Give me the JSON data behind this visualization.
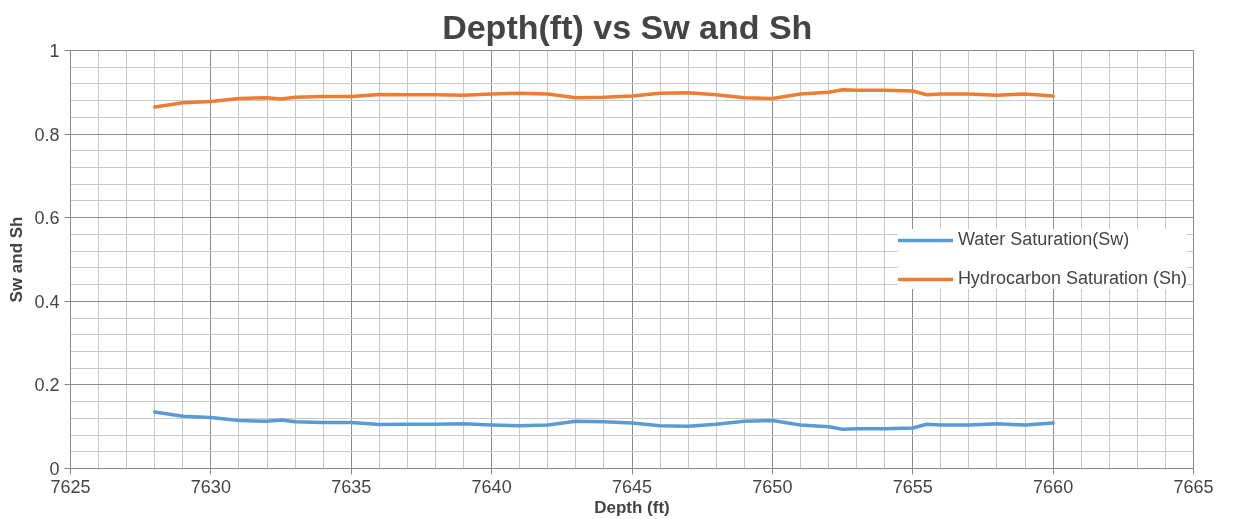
{
  "chart_data": {
    "type": "line",
    "title": "Depth(ft)  vs Sw and Sh",
    "xlabel": "Depth (ft)",
    "ylabel": "Sw and Sh",
    "x": [
      7628,
      7629,
      7630,
      7631,
      7632,
      7632.5,
      7633,
      7634,
      7635,
      7636,
      7637,
      7638,
      7639,
      7640,
      7641,
      7642,
      7643,
      7644,
      7645,
      7646,
      7647,
      7648,
      7649,
      7650,
      7651,
      7652,
      7652.5,
      7653,
      7654,
      7655,
      7655.5,
      7656,
      7657,
      7658,
      7659,
      7660
    ],
    "series": [
      {
        "name": "Water Saturation(Sw)",
        "color": "#5b9bd5",
        "values": [
          0.135,
          0.125,
          0.122,
          0.115,
          0.113,
          0.116,
          0.112,
          0.11,
          0.11,
          0.105,
          0.106,
          0.106,
          0.107,
          0.104,
          0.102,
          0.104,
          0.113,
          0.112,
          0.109,
          0.102,
          0.101,
          0.106,
          0.113,
          0.115,
          0.104,
          0.1,
          0.094,
          0.095,
          0.095,
          0.097,
          0.106,
          0.104,
          0.104,
          0.107,
          0.104,
          0.109
        ]
      },
      {
        "name": "Hydrocarbon Saturation (Sh)",
        "color": "#ed7d31",
        "values": [
          0.865,
          0.875,
          0.878,
          0.885,
          0.887,
          0.884,
          0.888,
          0.89,
          0.89,
          0.895,
          0.894,
          0.894,
          0.893,
          0.896,
          0.898,
          0.896,
          0.887,
          0.888,
          0.891,
          0.898,
          0.899,
          0.894,
          0.887,
          0.885,
          0.896,
          0.9,
          0.906,
          0.905,
          0.905,
          0.903,
          0.894,
          0.896,
          0.896,
          0.893,
          0.896,
          0.891
        ]
      }
    ],
    "xlim": [
      7625,
      7665
    ],
    "xticks": [
      7625,
      {
        "value": 7626,
        "label": null
      },
      {
        "value": 7627,
        "label": null
      },
      {
        "value": 7628,
        "label": null
      },
      {
        "value": 7629,
        "label": null
      },
      7630,
      {
        "value": 7631,
        "label": null
      },
      {
        "value": 7632,
        "label": null
      },
      {
        "value": 7633,
        "label": null
      },
      {
        "value": 7634,
        "label": null
      },
      7635,
      {
        "value": 7636,
        "label": null
      },
      {
        "value": 7637,
        "label": null
      },
      {
        "value": 7638,
        "label": null
      },
      {
        "value": 7639,
        "label": null
      },
      7640,
      {
        "value": 7641,
        "label": null
      },
      {
        "value": 7642,
        "label": null
      },
      {
        "value": 7643,
        "label": null
      },
      {
        "value": 7644,
        "label": null
      },
      7645,
      {
        "value": 7646,
        "label": null
      },
      {
        "value": 7647,
        "label": null
      },
      {
        "value": 7648,
        "label": null
      },
      {
        "value": 7649,
        "label": null
      },
      7650,
      {
        "value": 7651,
        "label": null
      },
      {
        "value": 7652,
        "label": null
      },
      {
        "value": 7653,
        "label": null
      },
      {
        "value": 7654,
        "label": null
      },
      7655,
      {
        "value": 7656,
        "label": null
      },
      {
        "value": 7657,
        "label": null
      },
      {
        "value": 7658,
        "label": null
      },
      {
        "value": 7659,
        "label": null
      },
      7660,
      {
        "value": 7661,
        "label": null
      },
      {
        "value": 7662,
        "label": null
      },
      {
        "value": 7663,
        "label": null
      },
      {
        "value": 7664,
        "label": null
      },
      7665
    ],
    "ylim": [
      0,
      1
    ],
    "yticks": [
      0,
      {
        "value": 0.04,
        "label": null
      },
      {
        "value": 0.08,
        "label": null
      },
      {
        "value": 0.12,
        "label": null
      },
      {
        "value": 0.16,
        "label": null
      },
      0.2,
      {
        "value": 0.24,
        "label": null
      },
      {
        "value": 0.28,
        "label": null
      },
      {
        "value": 0.32,
        "label": null
      },
      {
        "value": 0.36,
        "label": null
      },
      0.4,
      {
        "value": 0.44,
        "label": null
      },
      {
        "value": 0.48,
        "label": null
      },
      {
        "value": 0.52,
        "label": null
      },
      {
        "value": 0.56,
        "label": null
      },
      0.6,
      {
        "value": 0.64,
        "label": null
      },
      {
        "value": 0.68,
        "label": null
      },
      {
        "value": 0.72,
        "label": null
      },
      {
        "value": 0.76,
        "label": null
      },
      0.8,
      {
        "value": 0.84,
        "label": null
      },
      {
        "value": 0.88,
        "label": null
      },
      {
        "value": 0.92,
        "label": null
      },
      {
        "value": 0.96,
        "label": null
      },
      1
    ],
    "grid": true,
    "legend": "right",
    "marker": "none",
    "line_style": "solid"
  }
}
